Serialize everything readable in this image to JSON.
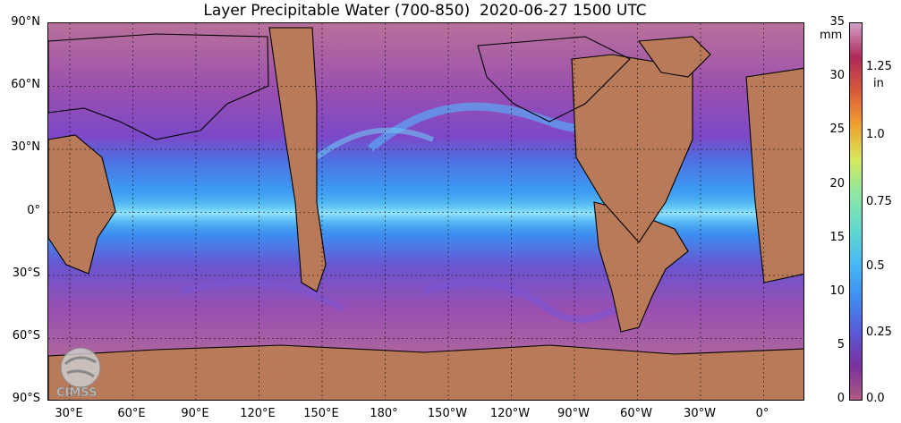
{
  "title": "Layer Precipitable Water (700-850)  2020-06-27 1500 UTC",
  "axes": {
    "lat_labels": [
      "90°N",
      "60°N",
      "30°N",
      "0°",
      "30°S",
      "60°S",
      "90°S"
    ],
    "lon_labels": [
      "30°E",
      "60°E",
      "90°E",
      "120°E",
      "150°E",
      "180°",
      "150°W",
      "120°W",
      "90°W",
      "60°W",
      "30°W",
      "0°"
    ]
  },
  "colorbar": {
    "mm_unit": "mm",
    "in_unit": "in",
    "mm_ticks": [
      "35",
      "30",
      "25",
      "20",
      "15",
      "10",
      "5",
      "0"
    ],
    "in_ticks": [
      "1.25",
      "1.0",
      "0.75",
      "0.5",
      "0.25",
      "0.0"
    ],
    "colors": [
      "#b05a84",
      "#7a2f9e",
      "#5a5ad8",
      "#3d8df0",
      "#46b9f5",
      "#60d8d0",
      "#8ee8a0",
      "#d8e85a",
      "#f0a030",
      "#d85a3a",
      "#b0285a",
      "#d2a0c8"
    ]
  },
  "logo": {
    "text": "CIMSS"
  }
}
